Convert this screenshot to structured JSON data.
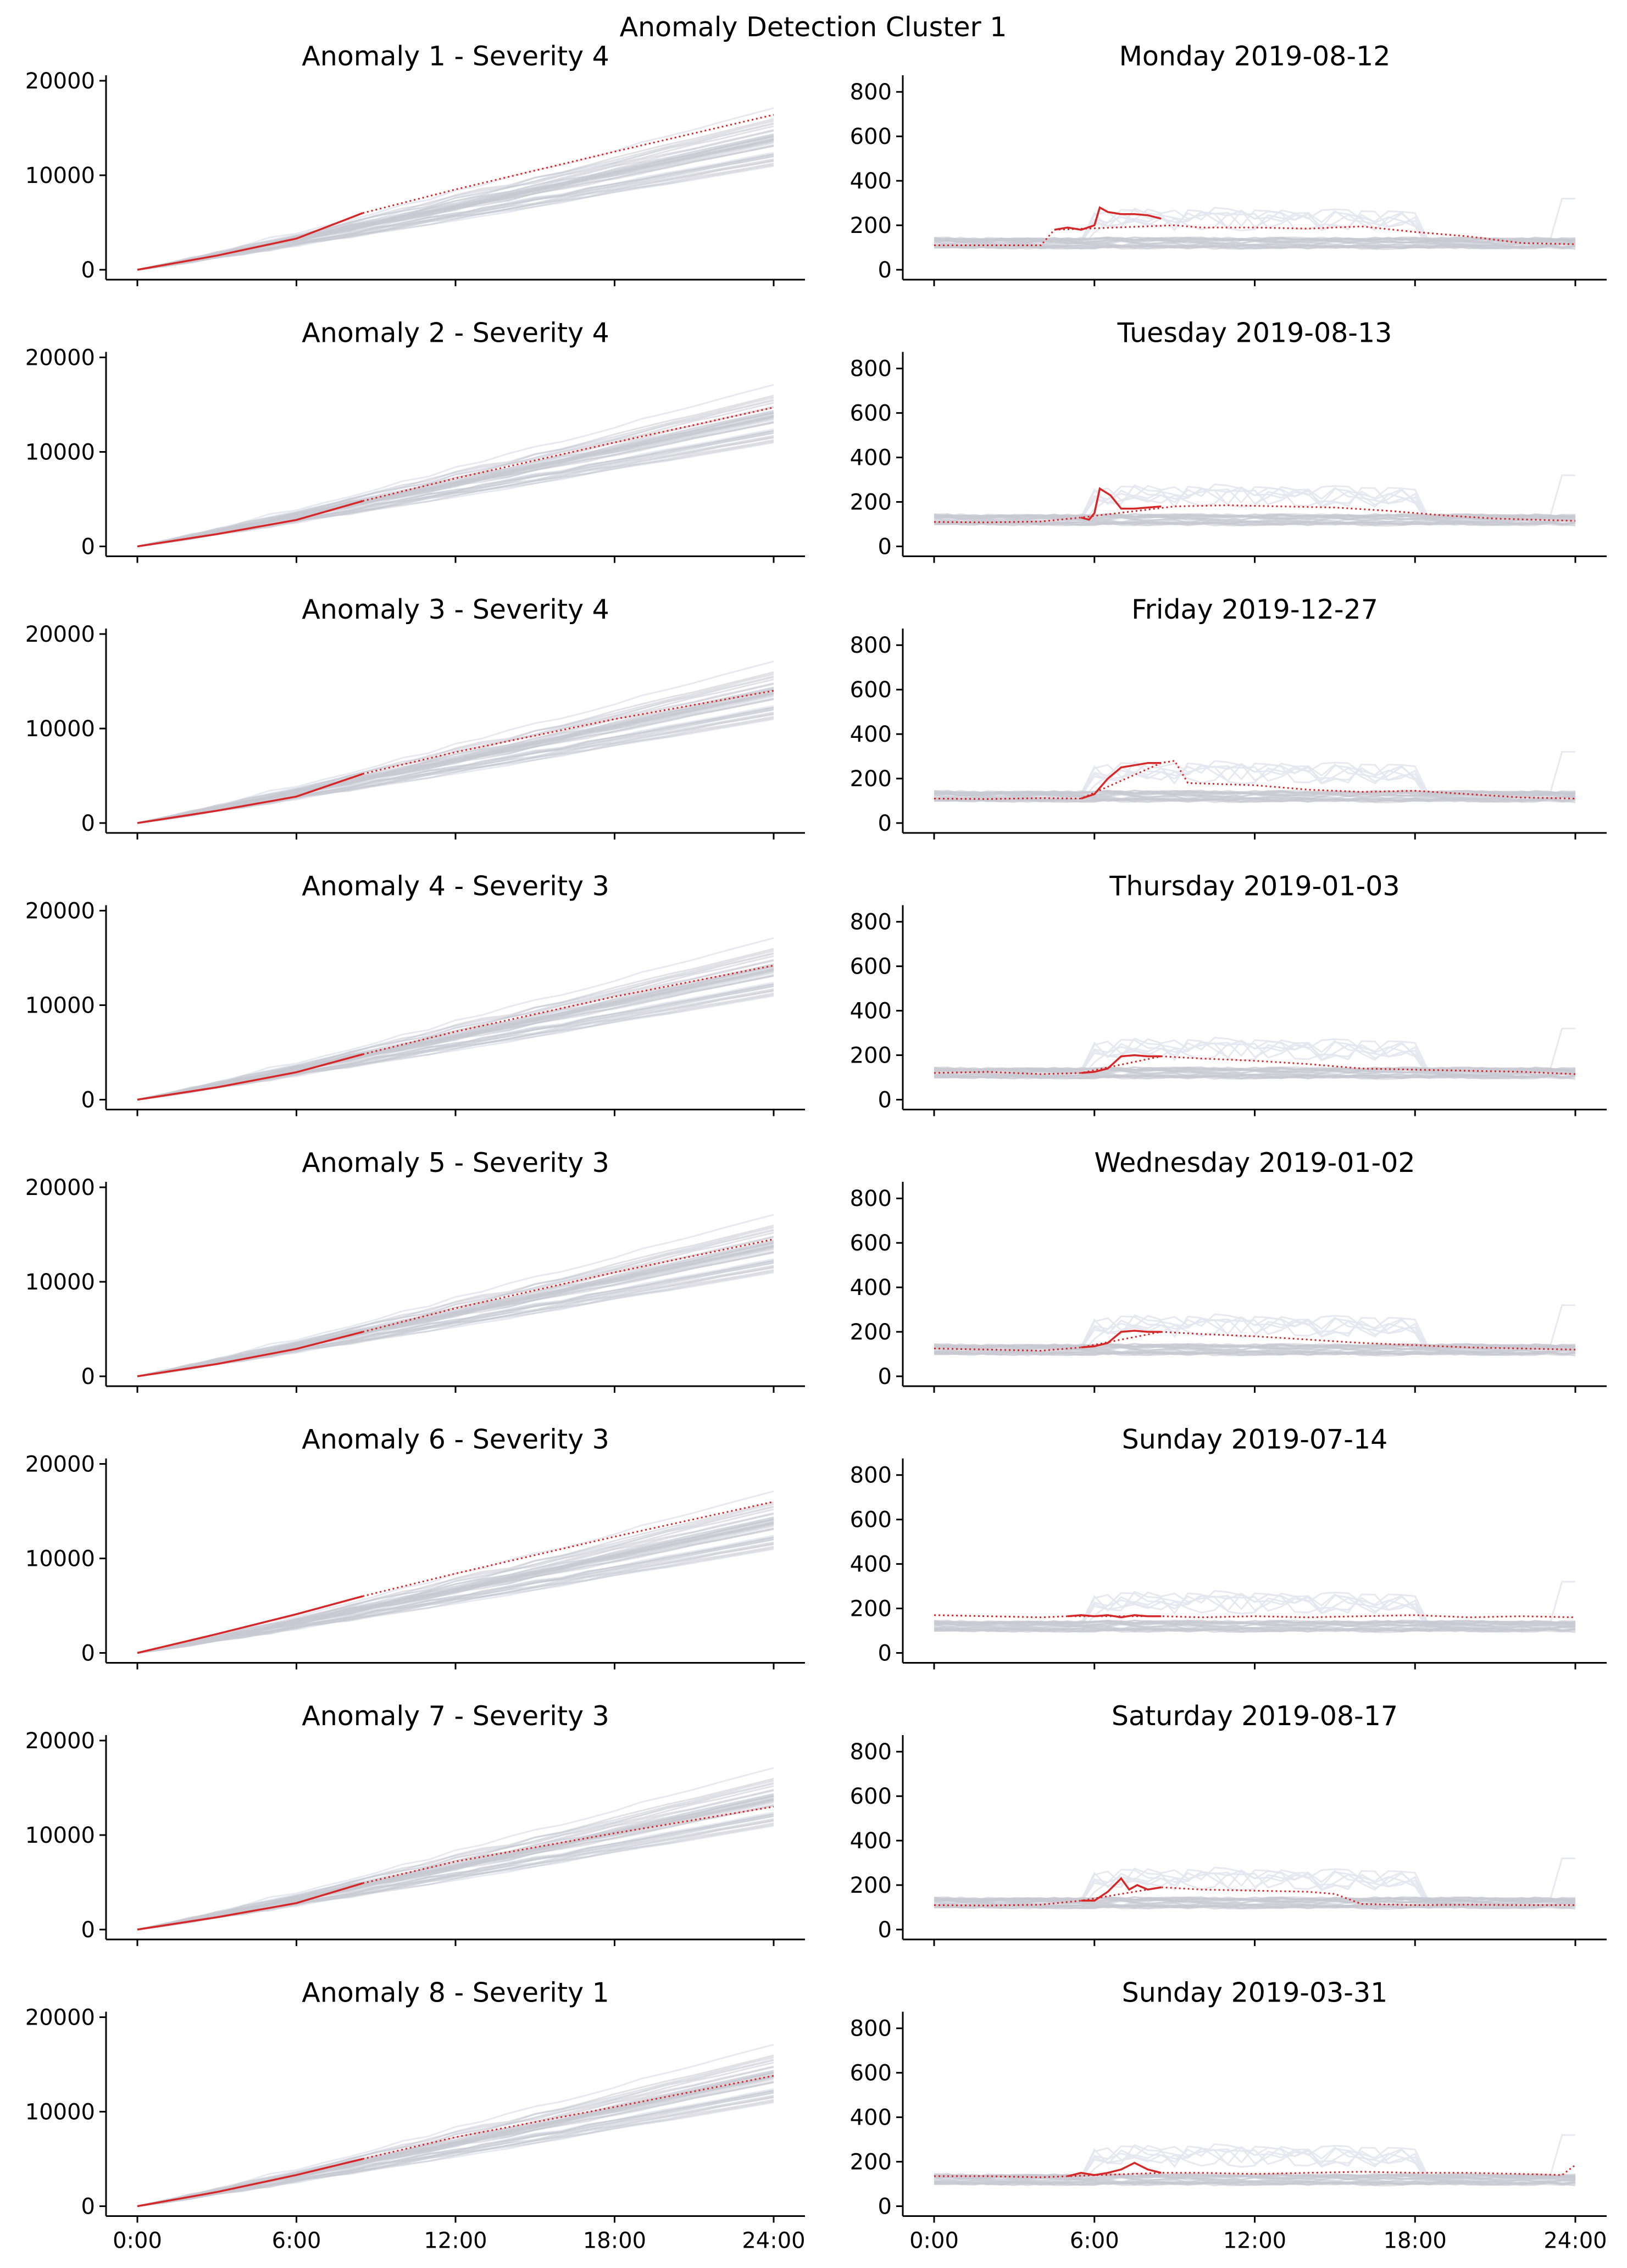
{
  "figure_title": "Anomaly Detection Cluster 1",
  "chart_data": [
    {
      "type": "line",
      "kind": "cumulative",
      "title": "Anomaly 1 - Severity 4",
      "xlim": [
        0,
        24
      ],
      "ylim": [
        0,
        20000
      ],
      "yticks": [
        0,
        10000,
        20000
      ],
      "observed": {
        "x": [
          0,
          3,
          6,
          8.5
        ],
        "y": [
          0,
          1500,
          3300,
          6000
        ]
      },
      "predicted": {
        "x": [
          8.5,
          12,
          18,
          24
        ],
        "y": [
          6000,
          8500,
          12500,
          16400
        ]
      }
    },
    {
      "type": "line",
      "kind": "cumulative",
      "title": "Anomaly 2 - Severity 4",
      "xlim": [
        0,
        24
      ],
      "ylim": [
        0,
        20000
      ],
      "yticks": [
        0,
        10000,
        20000
      ],
      "observed": {
        "x": [
          0,
          3,
          6,
          8.5
        ],
        "y": [
          0,
          1300,
          2800,
          4800
        ]
      },
      "predicted": {
        "x": [
          8.5,
          12,
          18,
          24
        ],
        "y": [
          4800,
          7200,
          11000,
          14700
        ]
      }
    },
    {
      "type": "line",
      "kind": "cumulative",
      "title": "Anomaly 3 - Severity 4",
      "xlim": [
        0,
        24
      ],
      "ylim": [
        0,
        20000
      ],
      "yticks": [
        0,
        10000,
        20000
      ],
      "observed": {
        "x": [
          0,
          3,
          6,
          8.5
        ],
        "y": [
          0,
          1300,
          2800,
          5200
        ]
      },
      "predicted": {
        "x": [
          8.5,
          12,
          18,
          24
        ],
        "y": [
          5200,
          7500,
          11000,
          14000
        ]
      }
    },
    {
      "type": "line",
      "kind": "cumulative",
      "title": "Anomaly 4 - Severity 3",
      "xlim": [
        0,
        24
      ],
      "ylim": [
        0,
        20000
      ],
      "yticks": [
        0,
        10000,
        20000
      ],
      "observed": {
        "x": [
          0,
          3,
          6,
          8.5
        ],
        "y": [
          0,
          1300,
          2900,
          4800
        ]
      },
      "predicted": {
        "x": [
          8.5,
          12,
          18,
          24
        ],
        "y": [
          4800,
          7200,
          10900,
          14200
        ]
      }
    },
    {
      "type": "line",
      "kind": "cumulative",
      "title": "Anomaly 5 - Severity 3",
      "xlim": [
        0,
        24
      ],
      "ylim": [
        0,
        20000
      ],
      "yticks": [
        0,
        10000,
        20000
      ],
      "observed": {
        "x": [
          0,
          3,
          6,
          8.5
        ],
        "y": [
          0,
          1300,
          2900,
          4700
        ]
      },
      "predicted": {
        "x": [
          8.5,
          12,
          18,
          24
        ],
        "y": [
          4700,
          7200,
          11000,
          14500
        ]
      }
    },
    {
      "type": "line",
      "kind": "cumulative",
      "title": "Anomaly 6 - Severity 3",
      "xlim": [
        0,
        24
      ],
      "ylim": [
        0,
        20000
      ],
      "yticks": [
        0,
        10000,
        20000
      ],
      "observed": {
        "x": [
          0,
          3,
          6,
          8.5
        ],
        "y": [
          0,
          2000,
          4100,
          6000
        ]
      },
      "predicted": {
        "x": [
          8.5,
          12,
          18,
          24
        ],
        "y": [
          6000,
          8400,
          12300,
          16000
        ]
      }
    },
    {
      "type": "line",
      "kind": "cumulative",
      "title": "Anomaly 7 - Severity 3",
      "xlim": [
        0,
        24
      ],
      "ylim": [
        0,
        20000
      ],
      "yticks": [
        0,
        10000,
        20000
      ],
      "observed": {
        "x": [
          0,
          3,
          6,
          8.5
        ],
        "y": [
          0,
          1300,
          2800,
          4900
        ]
      },
      "predicted": {
        "x": [
          8.5,
          12,
          18,
          24
        ],
        "y": [
          4900,
          7200,
          10200,
          13000
        ]
      }
    },
    {
      "type": "line",
      "kind": "cumulative",
      "title": "Anomaly 8 - Severity 1",
      "xlim": [
        0,
        24
      ],
      "ylim": [
        0,
        20000
      ],
      "yticks": [
        0,
        10000,
        20000
      ],
      "observed": {
        "x": [
          0,
          3,
          6,
          8.5
        ],
        "y": [
          0,
          1500,
          3300,
          5000
        ]
      },
      "predicted": {
        "x": [
          8.5,
          12,
          18,
          24
        ],
        "y": [
          5000,
          7300,
          10500,
          13800
        ]
      }
    },
    {
      "type": "line",
      "kind": "daily",
      "title": "Monday 2019-08-12",
      "xlim": [
        0,
        24
      ],
      "ylim": [
        0,
        850
      ],
      "yticks": [
        0,
        200,
        400,
        600,
        800
      ],
      "observed": {
        "x": [
          4.5,
          5,
          5.5,
          6,
          6.2,
          6.5,
          7,
          7.5,
          8,
          8.5
        ],
        "y": [
          180,
          190,
          180,
          200,
          280,
          260,
          250,
          250,
          245,
          230
        ]
      },
      "predicted": {
        "x": [
          0,
          2,
          4,
          4.5,
          9,
          10,
          12,
          14,
          16,
          18,
          20,
          22,
          24
        ],
        "y": [
          110,
          110,
          110,
          180,
          200,
          190,
          190,
          185,
          195,
          170,
          150,
          120,
          115
        ]
      }
    },
    {
      "type": "line",
      "kind": "daily",
      "title": "Tuesday 2019-08-13",
      "xlim": [
        0,
        24
      ],
      "ylim": [
        0,
        850
      ],
      "yticks": [
        0,
        200,
        400,
        600,
        800
      ],
      "observed": {
        "x": [
          5.5,
          5.8,
          6,
          6.2,
          6.6,
          7,
          7.5,
          8,
          8.5
        ],
        "y": [
          130,
          120,
          150,
          260,
          230,
          170,
          170,
          175,
          180
        ]
      },
      "predicted": {
        "x": [
          0,
          2,
          4,
          5.5,
          9,
          11,
          13,
          15,
          17,
          19,
          21,
          24
        ],
        "y": [
          110,
          108,
          112,
          130,
          180,
          185,
          180,
          175,
          160,
          140,
          125,
          115
        ]
      }
    },
    {
      "type": "line",
      "kind": "daily",
      "title": "Friday 2019-12-27",
      "xlim": [
        0,
        24
      ],
      "ylim": [
        0,
        850
      ],
      "yticks": [
        0,
        200,
        400,
        600,
        800
      ],
      "observed": {
        "x": [
          5.5,
          6,
          6.5,
          7,
          7.5,
          8,
          8.5
        ],
        "y": [
          110,
          130,
          200,
          250,
          260,
          270,
          270
        ]
      },
      "predicted": {
        "x": [
          0,
          2,
          4,
          5.5,
          8.5,
          9,
          9.5,
          12,
          14,
          16,
          18,
          20,
          22,
          24
        ],
        "y": [
          110,
          108,
          112,
          110,
          270,
          280,
          180,
          170,
          150,
          140,
          145,
          130,
          115,
          110
        ]
      }
    },
    {
      "type": "line",
      "kind": "daily",
      "title": "Thursday 2019-01-03",
      "xlim": [
        0,
        24
      ],
      "ylim": [
        0,
        850
      ],
      "yticks": [
        0,
        200,
        400,
        600,
        800
      ],
      "observed": {
        "x": [
          5.5,
          6,
          6.5,
          7,
          7.5,
          8,
          8.5
        ],
        "y": [
          120,
          125,
          140,
          195,
          200,
          195,
          195
        ]
      },
      "predicted": {
        "x": [
          0,
          2,
          4,
          5.5,
          8.5,
          10,
          12,
          14,
          16,
          18,
          20,
          22,
          24
        ],
        "y": [
          120,
          125,
          115,
          120,
          195,
          185,
          175,
          160,
          140,
          135,
          130,
          125,
          115
        ]
      }
    },
    {
      "type": "line",
      "kind": "daily",
      "title": "Wednesday 2019-01-02",
      "xlim": [
        0,
        24
      ],
      "ylim": [
        0,
        850
      ],
      "yticks": [
        0,
        200,
        400,
        600,
        800
      ],
      "observed": {
        "x": [
          5.5,
          6,
          6.5,
          7,
          7.5,
          8,
          8.5
        ],
        "y": [
          130,
          135,
          150,
          200,
          205,
          200,
          200
        ]
      },
      "predicted": {
        "x": [
          0,
          2,
          4,
          5.5,
          8.5,
          10,
          12,
          14,
          16,
          18,
          20,
          22,
          24
        ],
        "y": [
          125,
          120,
          115,
          130,
          200,
          190,
          180,
          165,
          150,
          140,
          130,
          125,
          120
        ]
      }
    },
    {
      "type": "line",
      "kind": "daily",
      "title": "Sunday 2019-07-14",
      "xlim": [
        0,
        24
      ],
      "ylim": [
        0,
        850
      ],
      "yticks": [
        0,
        200,
        400,
        600,
        800
      ],
      "observed": {
        "x": [
          5,
          5.5,
          6,
          6.5,
          7,
          7.5,
          8,
          8.5
        ],
        "y": [
          165,
          170,
          165,
          170,
          160,
          170,
          165,
          165
        ]
      },
      "predicted": {
        "x": [
          0,
          2,
          4,
          5,
          8.5,
          10,
          12,
          14,
          16,
          18,
          20,
          22,
          24
        ],
        "y": [
          170,
          165,
          160,
          165,
          165,
          160,
          165,
          160,
          165,
          170,
          160,
          165,
          160
        ]
      }
    },
    {
      "type": "line",
      "kind": "daily",
      "title": "Saturday 2019-08-17",
      "xlim": [
        0,
        24
      ],
      "ylim": [
        0,
        850
      ],
      "yticks": [
        0,
        200,
        400,
        600,
        800
      ],
      "observed": {
        "x": [
          5.5,
          6,
          6.5,
          7,
          7.3,
          7.6,
          8,
          8.5
        ],
        "y": [
          130,
          130,
          170,
          230,
          180,
          200,
          180,
          190
        ]
      },
      "predicted": {
        "x": [
          0,
          2,
          4,
          5.5,
          8.5,
          10,
          12,
          14,
          15,
          16,
          18,
          20,
          22,
          24
        ],
        "y": [
          110,
          108,
          112,
          130,
          190,
          180,
          175,
          170,
          160,
          115,
          110,
          112,
          110,
          110
        ]
      }
    },
    {
      "type": "line",
      "kind": "daily",
      "title": "Sunday 2019-03-31",
      "xlim": [
        0,
        24
      ],
      "ylim": [
        0,
        850
      ],
      "yticks": [
        0,
        200,
        400,
        600,
        800
      ],
      "observed": {
        "x": [
          5,
          5.5,
          6,
          6.5,
          7,
          7.5,
          8,
          8.5
        ],
        "y": [
          135,
          150,
          140,
          150,
          165,
          195,
          165,
          150
        ]
      },
      "predicted": {
        "x": [
          0,
          2,
          4,
          5,
          8.5,
          10,
          12,
          14,
          16,
          18,
          20,
          22,
          23.5,
          24
        ],
        "y": [
          135,
          135,
          130,
          135,
          150,
          150,
          145,
          150,
          155,
          150,
          150,
          145,
          140,
          185
        ]
      }
    }
  ],
  "x_tick_labels": [
    "0:00",
    "6:00",
    "12:00",
    "18:00",
    "24:00"
  ],
  "colors": {
    "anomaly": "#d62728",
    "background": "#c8c8d2"
  }
}
